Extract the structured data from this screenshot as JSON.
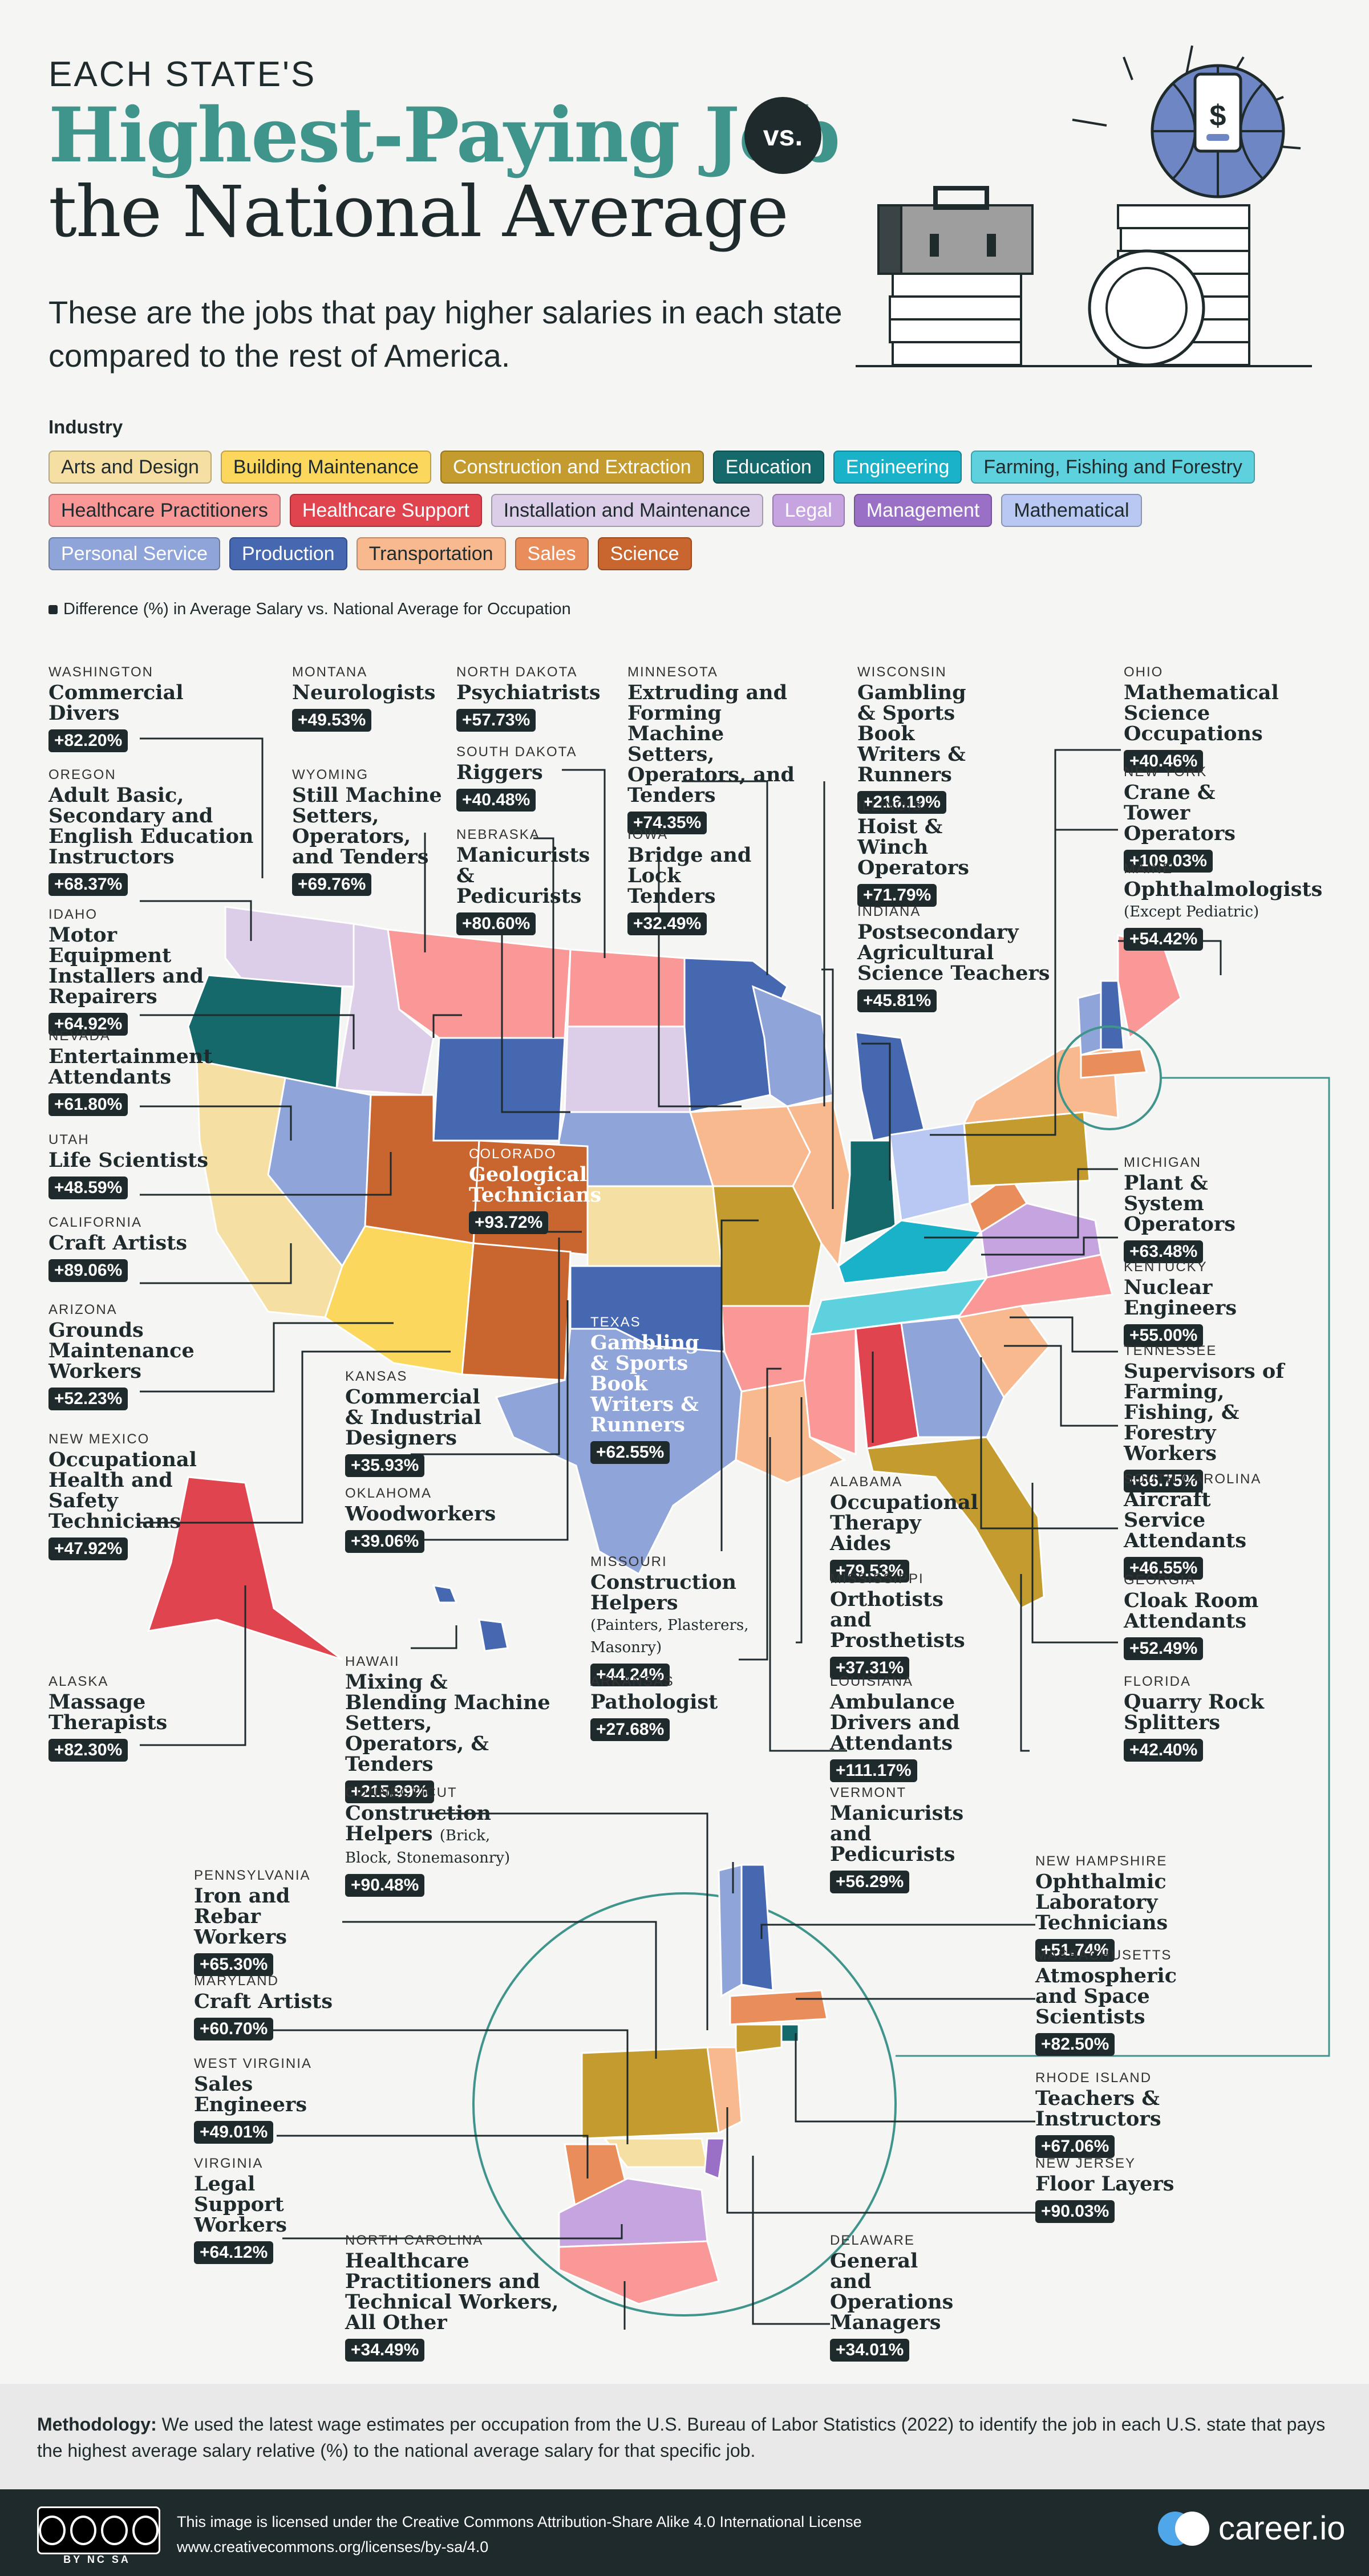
{
  "header": {
    "kicker": "EACH STATE'S",
    "title_line1": "Highest-Paying Job",
    "vs": "vs.",
    "title_line2": "the National Average",
    "subtitle": "These are the jobs that pay higher salaries in each state compared to the rest of America."
  },
  "legend": {
    "title": "Industry",
    "items": [
      {
        "label": "Arts and Design",
        "color": "#f5dfa3"
      },
      {
        "label": "Building Maintenance",
        "color": "#fcd75e"
      },
      {
        "label": "Construction and Extraction",
        "color": "#c49b2f"
      },
      {
        "label": "Education",
        "color": "#16696a"
      },
      {
        "label": "Engineering",
        "color": "#1ab2c8"
      },
      {
        "label": "Farming, Fishing and Forestry",
        "color": "#5ed1de"
      },
      {
        "label": "Healthcare Practitioners",
        "color": "#fa9797"
      },
      {
        "label": "Healthcare Support",
        "color": "#e0444e"
      },
      {
        "label": "Installation and Maintenance",
        "color": "#dccde8"
      },
      {
        "label": "Legal",
        "color": "#c6a4e0"
      },
      {
        "label": "Management",
        "color": "#9a70c7"
      },
      {
        "label": "Mathematical",
        "color": "#b9c8f2"
      },
      {
        "label": "Personal Service",
        "color": "#8fa4d8"
      },
      {
        "label": "Production",
        "color": "#4668b0"
      },
      {
        "label": "Transportation",
        "color": "#f9b98e"
      },
      {
        "label": "Sales",
        "color": "#e98e5a"
      },
      {
        "label": "Science",
        "color": "#c9652f"
      }
    ]
  },
  "note": "Difference (%) in Average Salary vs. National Average for Occupation",
  "states": [
    {
      "state": "WASHINGTON",
      "job": "Commercial Divers",
      "pct": "+82.20%"
    },
    {
      "state": "OREGON",
      "job": "Adult Basic, Secondary and English Education Instructors",
      "pct": "+68.37%"
    },
    {
      "state": "IDAHO",
      "job": "Motor Equipment Installers and Repairers",
      "pct": "+64.92%"
    },
    {
      "state": "NEVADA",
      "job": "Entertainment Attendants",
      "pct": "+61.80%"
    },
    {
      "state": "UTAH",
      "job": "Life Scientists",
      "pct": "+48.59%"
    },
    {
      "state": "CALIFORNIA",
      "job": "Craft Artists",
      "pct": "+89.06%"
    },
    {
      "state": "ARIZONA",
      "job": "Grounds Maintenance Workers",
      "pct": "+52.23%"
    },
    {
      "state": "NEW MEXICO",
      "job": "Occupational Health and Safety Technicians",
      "pct": "+47.92%"
    },
    {
      "state": "ALASKA",
      "job": "Massage Therapists",
      "pct": "+82.30%"
    },
    {
      "state": "MONTANA",
      "job": "Neurologists",
      "pct": "+49.53%"
    },
    {
      "state": "WYOMING",
      "job": "Still Machine Setters, Operators, and Tenders",
      "pct": "+69.76%"
    },
    {
      "state": "NORTH DAKOTA",
      "job": "Psychiatrists",
      "pct": "+57.73%"
    },
    {
      "state": "SOUTH DAKOTA",
      "job": "Riggers",
      "pct": "+40.48%"
    },
    {
      "state": "NEBRASKA",
      "job": "Manicurists & Pedicurists",
      "pct": "+80.60%"
    },
    {
      "state": "COLORADO",
      "job": "Geological Technicians",
      "pct": "+93.72%"
    },
    {
      "state": "KANSAS",
      "job": "Commercial & Industrial Designers",
      "pct": "+35.93%"
    },
    {
      "state": "OKLAHOMA",
      "job": "Woodworkers",
      "pct": "+39.06%"
    },
    {
      "state": "TEXAS",
      "job": "Gambling & Sports Book Writers & Runners",
      "pct": "+62.55%"
    },
    {
      "state": "HAWAII",
      "job": "Mixing & Blending Machine Setters, Operators, & Tenders",
      "pct": "+215.99%"
    },
    {
      "state": "MINNESOTA",
      "job": "Extruding and Forming Machine Setters, Operators, and Tenders",
      "pct": "+74.35%"
    },
    {
      "state": "IOWA",
      "job": "Bridge and Lock Tenders",
      "pct": "+32.49%"
    },
    {
      "state": "MISSOURI",
      "job": "Construction Helpers",
      "job_small": "(Painters, Plasterers, Masonry)",
      "pct": "+44.24%"
    },
    {
      "state": "ARKANSAS",
      "job": "Pathologist",
      "pct": "+27.68%"
    },
    {
      "state": "WISCONSIN",
      "job": "Gambling & Sports Book Writers & Runners",
      "pct": "+216.19%"
    },
    {
      "state": "ILLINOIS",
      "job": "Hoist & Winch Operators",
      "pct": "+71.79%"
    },
    {
      "state": "INDIANA",
      "job": "Postsecondary Agricultural Science Teachers",
      "pct": "+45.81%"
    },
    {
      "state": "ALABAMA",
      "job": "Occupational Therapy Aides",
      "pct": "+79.53%"
    },
    {
      "state": "MISSISSIPPI",
      "job": "Orthotists and Prosthetists",
      "pct": "+37.31%"
    },
    {
      "state": "LOUISIANA",
      "job": "Ambulance Drivers and Attendants",
      "pct": "+111.17%"
    },
    {
      "state": "OHIO",
      "job": "Mathematical Science Occupations",
      "pct": "+40.46%"
    },
    {
      "state": "NEW YORK",
      "job": "Crane & Tower Operators",
      "pct": "+109.03%"
    },
    {
      "state": "MAINE",
      "job": "Ophthalmologists",
      "job_small": "(Except Pediatric)",
      "pct": "+54.42%"
    },
    {
      "state": "MICHIGAN",
      "job": "Plant & System Operators",
      "pct": "+63.48%"
    },
    {
      "state": "KENTUCKY",
      "job": "Nuclear Engineers",
      "pct": "+55.00%"
    },
    {
      "state": "TENNESSEE",
      "job": "Supervisors of Farming, Fishing, & Forestry Workers",
      "pct": "+66.75%"
    },
    {
      "state": "SOUTH CAROLINA",
      "job": "Aircraft Service Attendants",
      "pct": "+46.55%"
    },
    {
      "state": "GEORGIA",
      "job": "Cloak Room Attendants",
      "pct": "+52.49%"
    },
    {
      "state": "FLORIDA",
      "job": "Quarry Rock Splitters",
      "pct": "+42.40%"
    },
    {
      "state": "CONNECTICUT",
      "job": "Construction Helpers",
      "job_small": "(Brick, Block, Stonemasonry)",
      "pct": "+90.48%"
    },
    {
      "state": "PENNSYLVANIA",
      "job": "Iron and Rebar Workers",
      "pct": "+65.30%"
    },
    {
      "state": "MARYLAND",
      "job": "Craft Artists",
      "pct": "+60.70%"
    },
    {
      "state": "WEST VIRGINIA",
      "job": "Sales Engineers",
      "pct": "+49.01%"
    },
    {
      "state": "VIRGINIA",
      "job": "Legal Support Workers",
      "pct": "+64.12%"
    },
    {
      "state": "NORTH CAROLINA",
      "job": "Healthcare Practitioners and Technical Workers, All Other",
      "pct": "+34.49%"
    },
    {
      "state": "VERMONT",
      "job": "Manicurists and Pedicurists",
      "pct": "+56.29%"
    },
    {
      "state": "NEW HAMPSHIRE",
      "job": "Ophthalmic Laboratory Technicians",
      "pct": "+51.74%"
    },
    {
      "state": "MASSACHUSETTS",
      "job": "Atmospheric and Space Scientists",
      "pct": "+82.50%"
    },
    {
      "state": "RHODE ISLAND",
      "job": "Teachers & Instructors",
      "pct": "+67.06%"
    },
    {
      "state": "NEW JERSEY",
      "job": "Floor Layers",
      "pct": "+90.03%"
    },
    {
      "state": "DELAWARE",
      "job": "General and Operations Managers",
      "pct": "+34.01%"
    }
  ],
  "methodology": {
    "label": "Methodology:",
    "text": "We used the latest wage estimates per occupation from the U.S. Bureau of Labor Statistics (2022) to identify the job in each U.S. state that pays the highest average salary relative (%) to the national average salary for that specific job."
  },
  "footer": {
    "cc_badge": "BY NC SA",
    "license_line1": "This image is licensed under the Creative Commons Attribution-Share Alike 4.0 International License",
    "license_line2": "www.creativecommons.org/licenses/by-sa/4.0",
    "brand": "career.io"
  }
}
